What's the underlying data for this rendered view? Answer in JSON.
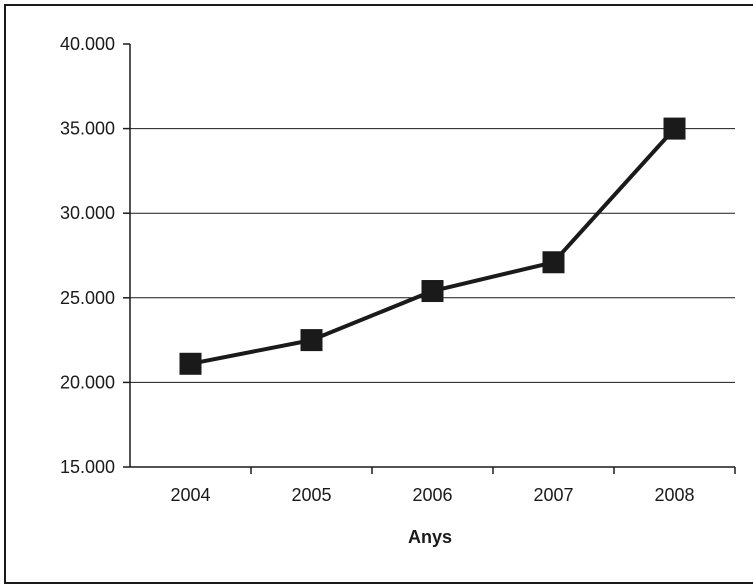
{
  "chart_data": {
    "type": "line",
    "title": "",
    "xlabel": "Anys",
    "ylabel": "",
    "categories": [
      "2004",
      "2005",
      "2006",
      "2007",
      "2008"
    ],
    "series": [
      {
        "values": [
          21100,
          22500,
          25400,
          27100,
          35000
        ],
        "color": "#1a1a1a",
        "marker": "square"
      }
    ],
    "ylim": [
      15000,
      40000
    ],
    "yticks": [
      15000,
      20000,
      25000,
      30000,
      35000,
      40000
    ],
    "ytick_labels": [
      "15.000",
      "20.000",
      "25.000",
      "30.000",
      "35.000",
      "40.000"
    ],
    "grid": true,
    "legend": "none"
  }
}
